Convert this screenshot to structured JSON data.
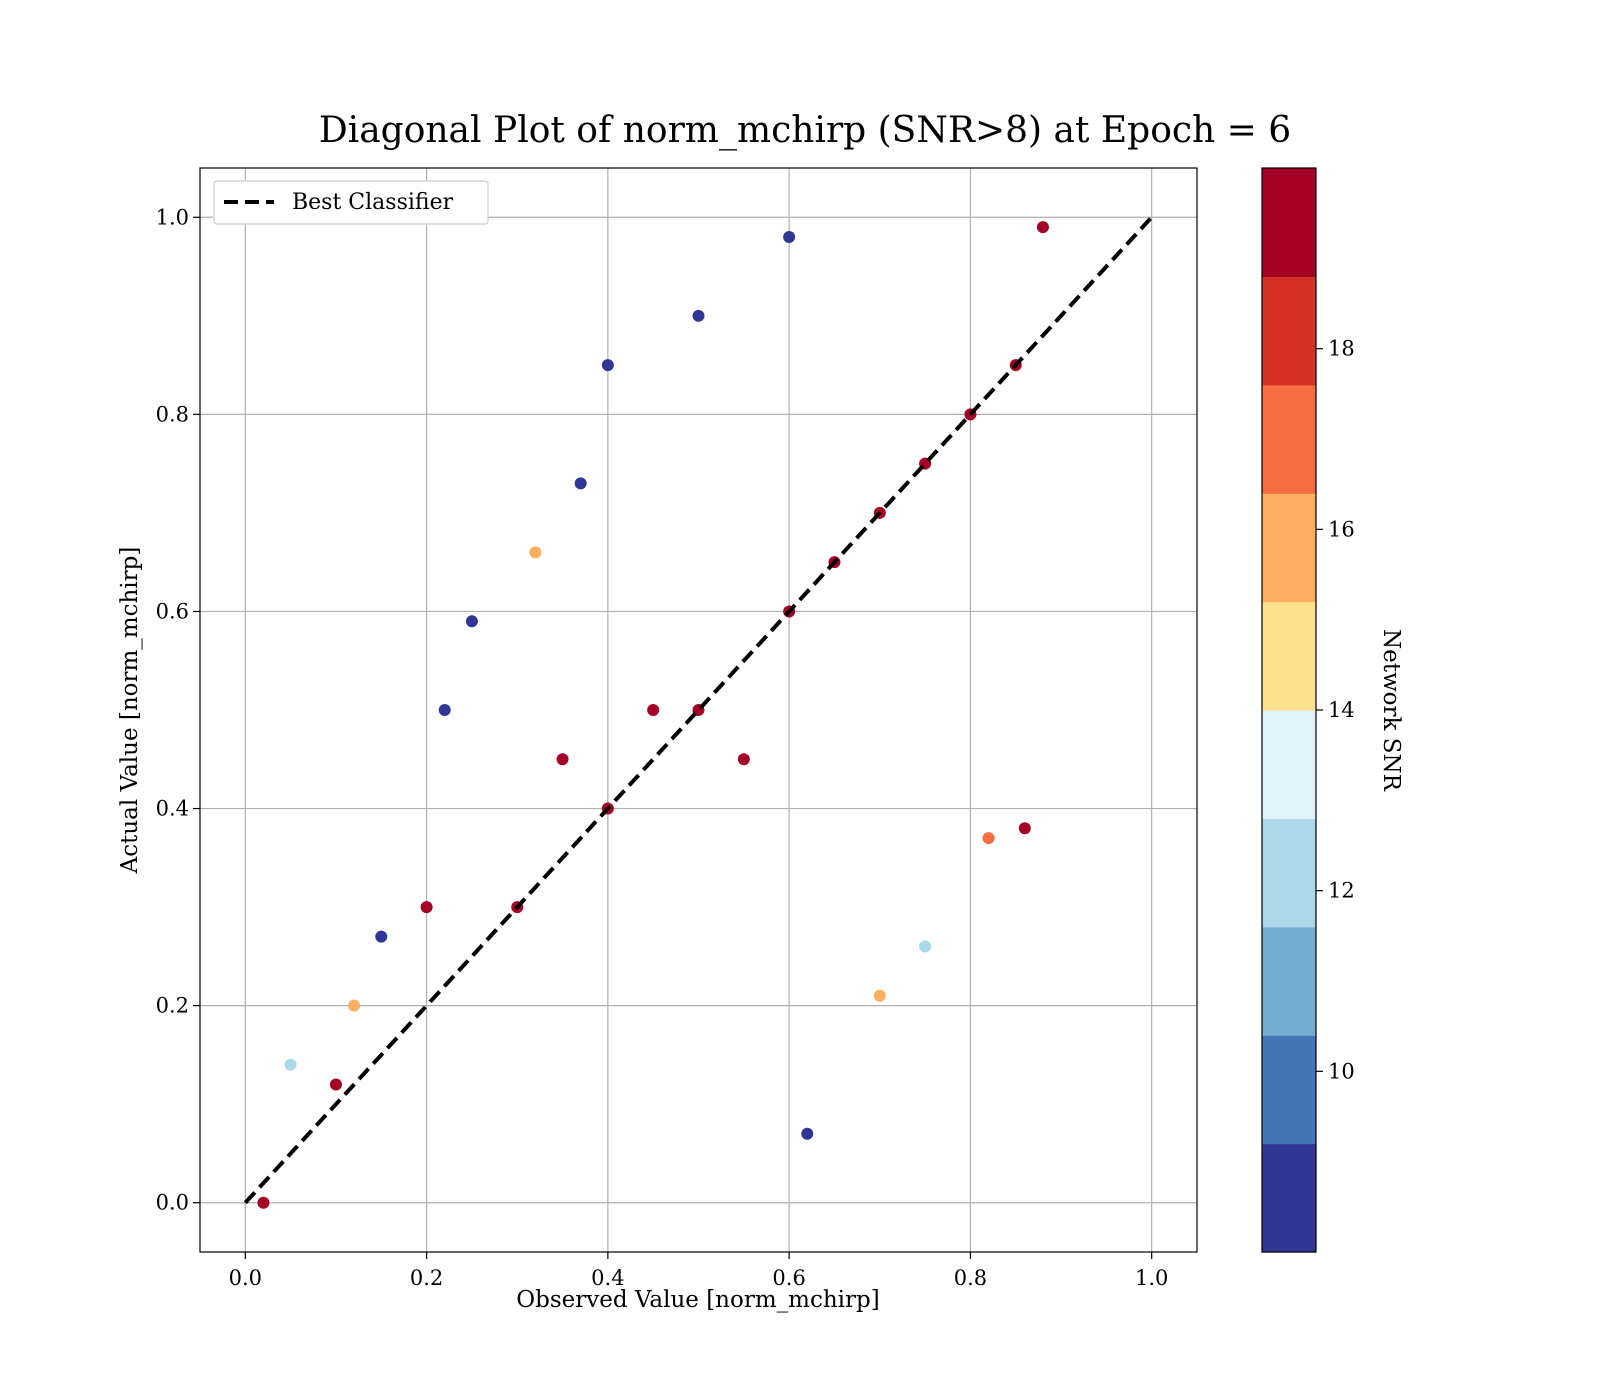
{
  "chart_data": {
    "type": "scatter",
    "title": "Diagonal Plot of norm_mchirp (SNR>8) at Epoch = 6",
    "xlabel": "Observed Value [norm_mchirp]",
    "ylabel": "Actual Value [norm_mchirp]",
    "xlim": [
      -0.05,
      1.05
    ],
    "ylim": [
      -0.05,
      1.05
    ],
    "x_ticks": [
      "0.0",
      "0.2",
      "0.4",
      "0.6",
      "0.8",
      "1.0"
    ],
    "y_ticks": [
      "0.0",
      "0.2",
      "0.4",
      "0.6",
      "0.8",
      "1.0"
    ],
    "grid": true,
    "legend": {
      "placement": "upper-left",
      "entries": [
        {
          "label": "Best Classifier",
          "style": "dashed",
          "color": "#000000"
        }
      ]
    },
    "reference_line": {
      "name": "Best Classifier",
      "x": [
        0.0,
        1.0
      ],
      "y": [
        0.0,
        1.0
      ]
    },
    "colorbar": {
      "label": "Network SNR",
      "range": [
        8,
        20
      ],
      "ticks": [
        "10",
        "12",
        "14",
        "16",
        "18"
      ],
      "tick_values": [
        10,
        12,
        14,
        16,
        18
      ],
      "colors": [
        "#313695",
        "#4575b4",
        "#74add1",
        "#abd9e9",
        "#e0f3f8",
        "#fee090",
        "#fdae61",
        "#f46d43",
        "#d73027",
        "#a50026"
      ]
    },
    "points_note_color_by": "snr",
    "points": [
      {
        "x": 0.02,
        "y": 0.0,
        "snr": 19.5
      },
      {
        "x": 0.05,
        "y": 0.14,
        "snr": 12.5
      },
      {
        "x": 0.1,
        "y": 0.12,
        "snr": 19.5
      },
      {
        "x": 0.12,
        "y": 0.2,
        "snr": 15.5
      },
      {
        "x": 0.15,
        "y": 0.27,
        "snr": 8.5
      },
      {
        "x": 0.2,
        "y": 0.3,
        "snr": 19.5
      },
      {
        "x": 0.22,
        "y": 0.5,
        "snr": 8.5
      },
      {
        "x": 0.25,
        "y": 0.59,
        "snr": 8.5
      },
      {
        "x": 0.3,
        "y": 0.3,
        "snr": 19.5
      },
      {
        "x": 0.32,
        "y": 0.66,
        "snr": 15.5
      },
      {
        "x": 0.35,
        "y": 0.45,
        "snr": 19.5
      },
      {
        "x": 0.37,
        "y": 0.73,
        "snr": 8.5
      },
      {
        "x": 0.4,
        "y": 0.85,
        "snr": 8.5
      },
      {
        "x": 0.4,
        "y": 0.4,
        "snr": 19.5
      },
      {
        "x": 0.45,
        "y": 0.5,
        "snr": 19.5
      },
      {
        "x": 0.5,
        "y": 0.9,
        "snr": 8.5
      },
      {
        "x": 0.5,
        "y": 0.5,
        "snr": 19.5
      },
      {
        "x": 0.55,
        "y": 0.45,
        "snr": 19.5
      },
      {
        "x": 0.6,
        "y": 0.6,
        "snr": 19.5
      },
      {
        "x": 0.6,
        "y": 0.98,
        "snr": 8.5
      },
      {
        "x": 0.62,
        "y": 0.07,
        "snr": 8.5
      },
      {
        "x": 0.65,
        "y": 0.65,
        "snr": 19.5
      },
      {
        "x": 0.7,
        "y": 0.7,
        "snr": 19.5
      },
      {
        "x": 0.7,
        "y": 0.21,
        "snr": 15.5
      },
      {
        "x": 0.75,
        "y": 0.75,
        "snr": 19.5
      },
      {
        "x": 0.75,
        "y": 0.26,
        "snr": 12.5
      },
      {
        "x": 0.8,
        "y": 0.8,
        "snr": 19.5
      },
      {
        "x": 0.82,
        "y": 0.37,
        "snr": 17.5
      },
      {
        "x": 0.85,
        "y": 0.85,
        "snr": 19.5
      },
      {
        "x": 0.86,
        "y": 0.38,
        "snr": 19.5
      },
      {
        "x": 0.88,
        "y": 0.99,
        "snr": 19.5
      }
    ]
  }
}
